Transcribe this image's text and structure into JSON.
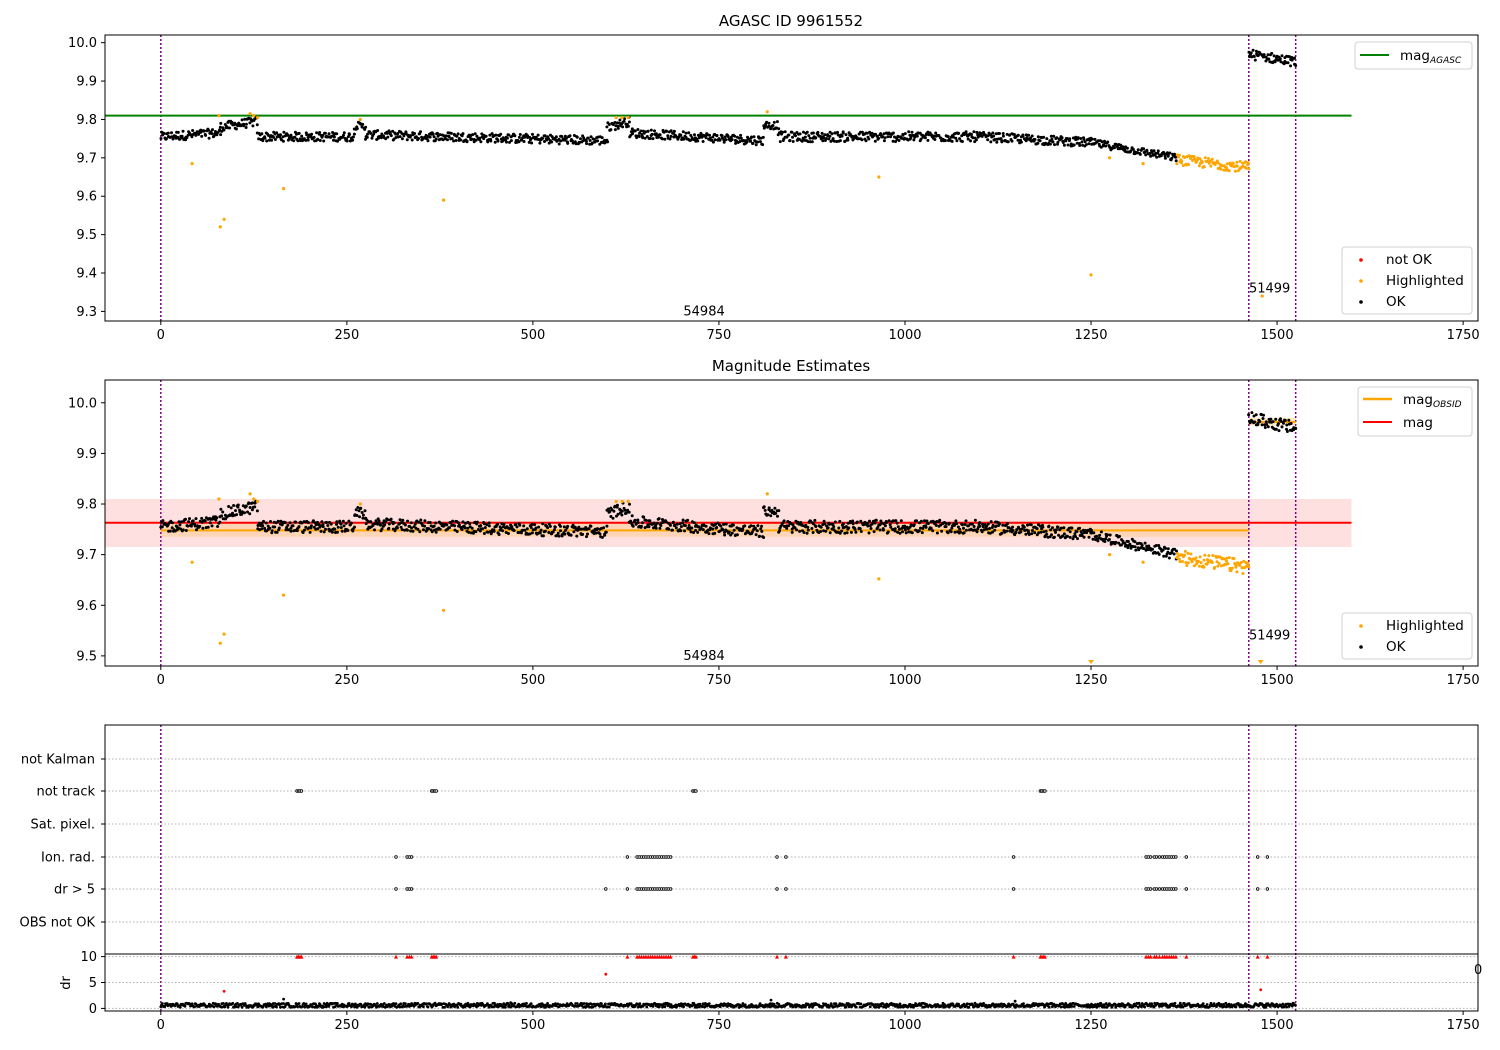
{
  "chart_data": [
    {
      "type": "scatter",
      "title": "AGASC ID 9961552",
      "xlim": [
        -75,
        1770
      ],
      "ylim": [
        9.275,
        10.02
      ],
      "x_ticks": [
        0,
        250,
        500,
        750,
        1000,
        1250,
        1500,
        1750
      ],
      "y_ticks": [
        9.3,
        9.4,
        9.5,
        9.6,
        9.7,
        9.8,
        9.9,
        10.0
      ],
      "y_tick_labels": [
        "9.3",
        "9.4",
        "9.5",
        "9.6",
        "9.7",
        "9.8",
        "9.9",
        "10.0"
      ],
      "legend_top": {
        "placement": "top-right",
        "entries": [
          {
            "label": "mag",
            "subscript": "AGASC",
            "color": "#008000",
            "kind": "line"
          }
        ]
      },
      "legend_bottom": {
        "placement": "bottom-right",
        "entries": [
          {
            "label": "not OK",
            "color": "#ff0000",
            "kind": "marker"
          },
          {
            "label": "Highlighted",
            "color": "#ffa500",
            "kind": "marker"
          },
          {
            "label": "OK",
            "color": "#000000",
            "kind": "marker"
          }
        ]
      },
      "annotations": [
        {
          "text": "54984",
          "x": 730,
          "y": 9.3
        },
        {
          "text": "51499",
          "x": 1490,
          "y": 9.36
        }
      ],
      "vlines": [
        0,
        1462,
        1525
      ],
      "hlines": [
        {
          "y": 9.81,
          "x0": -75,
          "x1": 1600,
          "color": "#008000"
        }
      ],
      "series": [
        {
          "name": "OK",
          "color": "#000000",
          "segments": [
            {
              "x0": 0,
              "x1": 80,
              "y0": 9.755,
              "y1": 9.765,
              "amp": 0.012
            },
            {
              "x0": 80,
              "x1": 130,
              "y0": 9.78,
              "y1": 9.795,
              "amp": 0.012
            },
            {
              "x0": 130,
              "x1": 260,
              "y0": 9.755,
              "y1": 9.755,
              "amp": 0.012
            },
            {
              "x0": 260,
              "x1": 275,
              "y0": 9.785,
              "y1": 9.78,
              "amp": 0.01
            },
            {
              "x0": 275,
              "x1": 600,
              "y0": 9.76,
              "y1": 9.745,
              "amp": 0.012
            },
            {
              "x0": 600,
              "x1": 630,
              "y0": 9.78,
              "y1": 9.795,
              "amp": 0.012
            },
            {
              "x0": 630,
              "x1": 810,
              "y0": 9.765,
              "y1": 9.745,
              "amp": 0.012
            },
            {
              "x0": 810,
              "x1": 830,
              "y0": 9.785,
              "y1": 9.785,
              "amp": 0.01
            },
            {
              "x0": 830,
              "x1": 1100,
              "y0": 9.755,
              "y1": 9.755,
              "amp": 0.013
            },
            {
              "x0": 1100,
              "x1": 1250,
              "y0": 9.755,
              "y1": 9.74,
              "amp": 0.012
            },
            {
              "x0": 1250,
              "x1": 1365,
              "y0": 9.74,
              "y1": 9.7,
              "amp": 0.01
            },
            {
              "x0": 1462,
              "x1": 1525,
              "y0": 9.97,
              "y1": 9.95,
              "amp": 0.013
            }
          ]
        },
        {
          "name": "Highlighted",
          "color": "#ffa500",
          "segments": [
            {
              "x0": 1365,
              "x1": 1462,
              "y0": 9.695,
              "y1": 9.675,
              "amp": 0.014
            }
          ],
          "points": [
            [
              42,
              9.685
            ],
            [
              78,
              9.81
            ],
            [
              80,
              9.52
            ],
            [
              85,
              9.54
            ],
            [
              120,
              9.815
            ],
            [
              125,
              9.81
            ],
            [
              130,
              9.805
            ],
            [
              165,
              9.62
            ],
            [
              268,
              9.8
            ],
            [
              380,
              9.59
            ],
            [
              612,
              9.805
            ],
            [
              620,
              9.805
            ],
            [
              628,
              9.805
            ],
            [
              815,
              9.82
            ],
            [
              965,
              9.65
            ],
            [
              1250,
              9.395
            ],
            [
              1275,
              9.7
            ],
            [
              1320,
              9.685
            ],
            [
              1480,
              9.34
            ]
          ]
        }
      ]
    },
    {
      "type": "scatter",
      "title": "Magnitude Estimates",
      "xlim": [
        -75,
        1770
      ],
      "ylim": [
        9.48,
        10.045
      ],
      "x_ticks": [
        0,
        250,
        500,
        750,
        1000,
        1250,
        1500,
        1750
      ],
      "y_ticks": [
        9.5,
        9.6,
        9.7,
        9.8,
        9.9,
        10.0
      ],
      "y_tick_labels": [
        "9.5",
        "9.6",
        "9.7",
        "9.8",
        "9.9",
        "10.0"
      ],
      "legend_top": {
        "placement": "top-right",
        "entries": [
          {
            "label": "mag",
            "subscript": "OBSID",
            "color": "#ffa500",
            "kind": "line"
          },
          {
            "label": "mag",
            "subscript": "",
            "color": "#ff0000",
            "kind": "line"
          }
        ]
      },
      "legend_bottom": {
        "placement": "bottom-right",
        "entries": [
          {
            "label": "Highlighted",
            "color": "#ffa500",
            "kind": "marker"
          },
          {
            "label": "OK",
            "color": "#000000",
            "kind": "marker"
          }
        ]
      },
      "annotations": [
        {
          "text": "54984",
          "x": 730,
          "y": 9.5
        },
        {
          "text": "51499",
          "x": 1490,
          "y": 9.54
        }
      ],
      "vlines": [
        0,
        1462,
        1525
      ],
      "bands": [
        {
          "x0": -75,
          "x1": 1600,
          "y0": 9.715,
          "y1": 9.81,
          "color": "#ff0000",
          "opacity": 0.12
        },
        {
          "x0": 0,
          "x1": 1462,
          "y0": 9.735,
          "y1": 9.765,
          "color": "#ffa500",
          "opacity": 0.18
        },
        {
          "x0": 1462,
          "x1": 1525,
          "y0": 9.955,
          "y1": 9.97,
          "color": "#ffa500",
          "opacity": 0.25
        }
      ],
      "hlines": [
        {
          "y": 9.763,
          "x0": -75,
          "x1": 1600,
          "color": "#ff0000"
        },
        {
          "y": 9.748,
          "x0": 0,
          "x1": 1462,
          "color": "#ffa500"
        },
        {
          "y": 9.962,
          "x0": 1462,
          "x1": 1525,
          "color": "#ffa500"
        }
      ],
      "series": [
        {
          "name": "OK",
          "color": "#000000",
          "segments": [
            {
              "x0": 0,
              "x1": 80,
              "y0": 9.755,
              "y1": 9.765,
              "amp": 0.012
            },
            {
              "x0": 80,
              "x1": 130,
              "y0": 9.78,
              "y1": 9.795,
              "amp": 0.012
            },
            {
              "x0": 130,
              "x1": 260,
              "y0": 9.755,
              "y1": 9.755,
              "amp": 0.012
            },
            {
              "x0": 260,
              "x1": 275,
              "y0": 9.785,
              "y1": 9.78,
              "amp": 0.01
            },
            {
              "x0": 275,
              "x1": 600,
              "y0": 9.76,
              "y1": 9.745,
              "amp": 0.012
            },
            {
              "x0": 600,
              "x1": 630,
              "y0": 9.78,
              "y1": 9.795,
              "amp": 0.012
            },
            {
              "x0": 630,
              "x1": 810,
              "y0": 9.765,
              "y1": 9.745,
              "amp": 0.012
            },
            {
              "x0": 810,
              "x1": 830,
              "y0": 9.785,
              "y1": 9.785,
              "amp": 0.01
            },
            {
              "x0": 830,
              "x1": 1100,
              "y0": 9.755,
              "y1": 9.755,
              "amp": 0.013
            },
            {
              "x0": 1100,
              "x1": 1250,
              "y0": 9.755,
              "y1": 9.74,
              "amp": 0.012
            },
            {
              "x0": 1250,
              "x1": 1365,
              "y0": 9.74,
              "y1": 9.7,
              "amp": 0.01
            },
            {
              "x0": 1462,
              "x1": 1525,
              "y0": 9.97,
              "y1": 9.95,
              "amp": 0.013
            }
          ]
        },
        {
          "name": "Highlighted",
          "color": "#ffa500",
          "segments": [
            {
              "x0": 1365,
              "x1": 1462,
              "y0": 9.695,
              "y1": 9.675,
              "amp": 0.014
            }
          ],
          "points": [
            [
              42,
              9.685
            ],
            [
              78,
              9.81
            ],
            [
              80,
              9.525
            ],
            [
              85,
              9.543
            ],
            [
              120,
              9.82
            ],
            [
              125,
              9.81
            ],
            [
              130,
              9.805
            ],
            [
              165,
              9.62
            ],
            [
              268,
              9.8
            ],
            [
              380,
              9.59
            ],
            [
              612,
              9.805
            ],
            [
              620,
              9.805
            ],
            [
              628,
              9.805
            ],
            [
              815,
              9.82
            ],
            [
              965,
              9.652
            ],
            [
              1275,
              9.7
            ],
            [
              1320,
              9.685
            ]
          ],
          "off_scale_markers": [
            1250,
            1478
          ]
        }
      ]
    },
    {
      "type": "scatter",
      "title": "",
      "xlim": [
        -75,
        1770
      ],
      "x_ticks": [
        0,
        250,
        500,
        750,
        1000,
        1250,
        1500,
        1750
      ],
      "vlines": [
        0,
        1462,
        1525
      ],
      "flag_rows": [
        {
          "label": "not Kalman",
          "x": []
        },
        {
          "label": "not track",
          "x": [
            183,
            185,
            187,
            189,
            364,
            366,
            368,
            370,
            715,
            717,
            719,
            1182,
            1184,
            1186,
            1188
          ]
        },
        {
          "label": "Sat. pixel.",
          "x": []
        },
        {
          "label": "Ion. rad.",
          "x": [
            316,
            331,
            334,
            337,
            627,
            640,
            643,
            646,
            649,
            652,
            655,
            658,
            661,
            664,
            667,
            670,
            673,
            676,
            679,
            682,
            685,
            828,
            840,
            1146,
            1324,
            1327,
            1330,
            1335,
            1338,
            1342,
            1346,
            1349,
            1352,
            1355,
            1358,
            1361,
            1364,
            1378,
            1474,
            1487
          ]
        },
        {
          "label": "dr > 5",
          "x": [
            316,
            331,
            334,
            337,
            598,
            627,
            640,
            643,
            646,
            649,
            652,
            655,
            658,
            661,
            664,
            667,
            670,
            673,
            676,
            679,
            682,
            685,
            828,
            840,
            1146,
            1324,
            1327,
            1330,
            1335,
            1338,
            1342,
            1346,
            1349,
            1352,
            1355,
            1358,
            1361,
            1364,
            1378,
            1474,
            1487
          ]
        },
        {
          "label": "OBS not OK",
          "x": []
        }
      ],
      "dr_panel": {
        "ylabel": "dr",
        "y_ticks": [
          0,
          5,
          10
        ],
        "y_tick_labels": [
          "0",
          "5",
          "10"
        ],
        "ylim": [
          -0.5,
          10.5
        ],
        "baseline": {
          "x0": 0,
          "x1": 1525,
          "mean": 0.6,
          "amp": 0.4
        },
        "bumps": [
          {
            "x": 820,
            "y": 1.6
          },
          {
            "x": 1148,
            "y": 1.4
          },
          {
            "x": 165,
            "y": 1.8
          },
          {
            "x": 470,
            "y": 1.1
          },
          {
            "x": 1370,
            "y": 1.0
          }
        ],
        "clipped_x": [
          183,
          185,
          187,
          189,
          316,
          331,
          334,
          337,
          364,
          366,
          368,
          370,
          627,
          640,
          643,
          646,
          649,
          652,
          655,
          658,
          661,
          664,
          667,
          670,
          673,
          676,
          679,
          682,
          685,
          715,
          717,
          719,
          828,
          840,
          1146,
          1182,
          1184,
          1186,
          1188,
          1324,
          1327,
          1330,
          1335,
          1338,
          1342,
          1346,
          1349,
          1352,
          1355,
          1358,
          1361,
          1364,
          1378,
          1474,
          1487
        ],
        "red_points": [
          [
            85,
            3.3
          ],
          [
            598,
            6.6
          ],
          [
            1478,
            3.6
          ]
        ],
        "edge_fragment": "0"
      }
    }
  ]
}
